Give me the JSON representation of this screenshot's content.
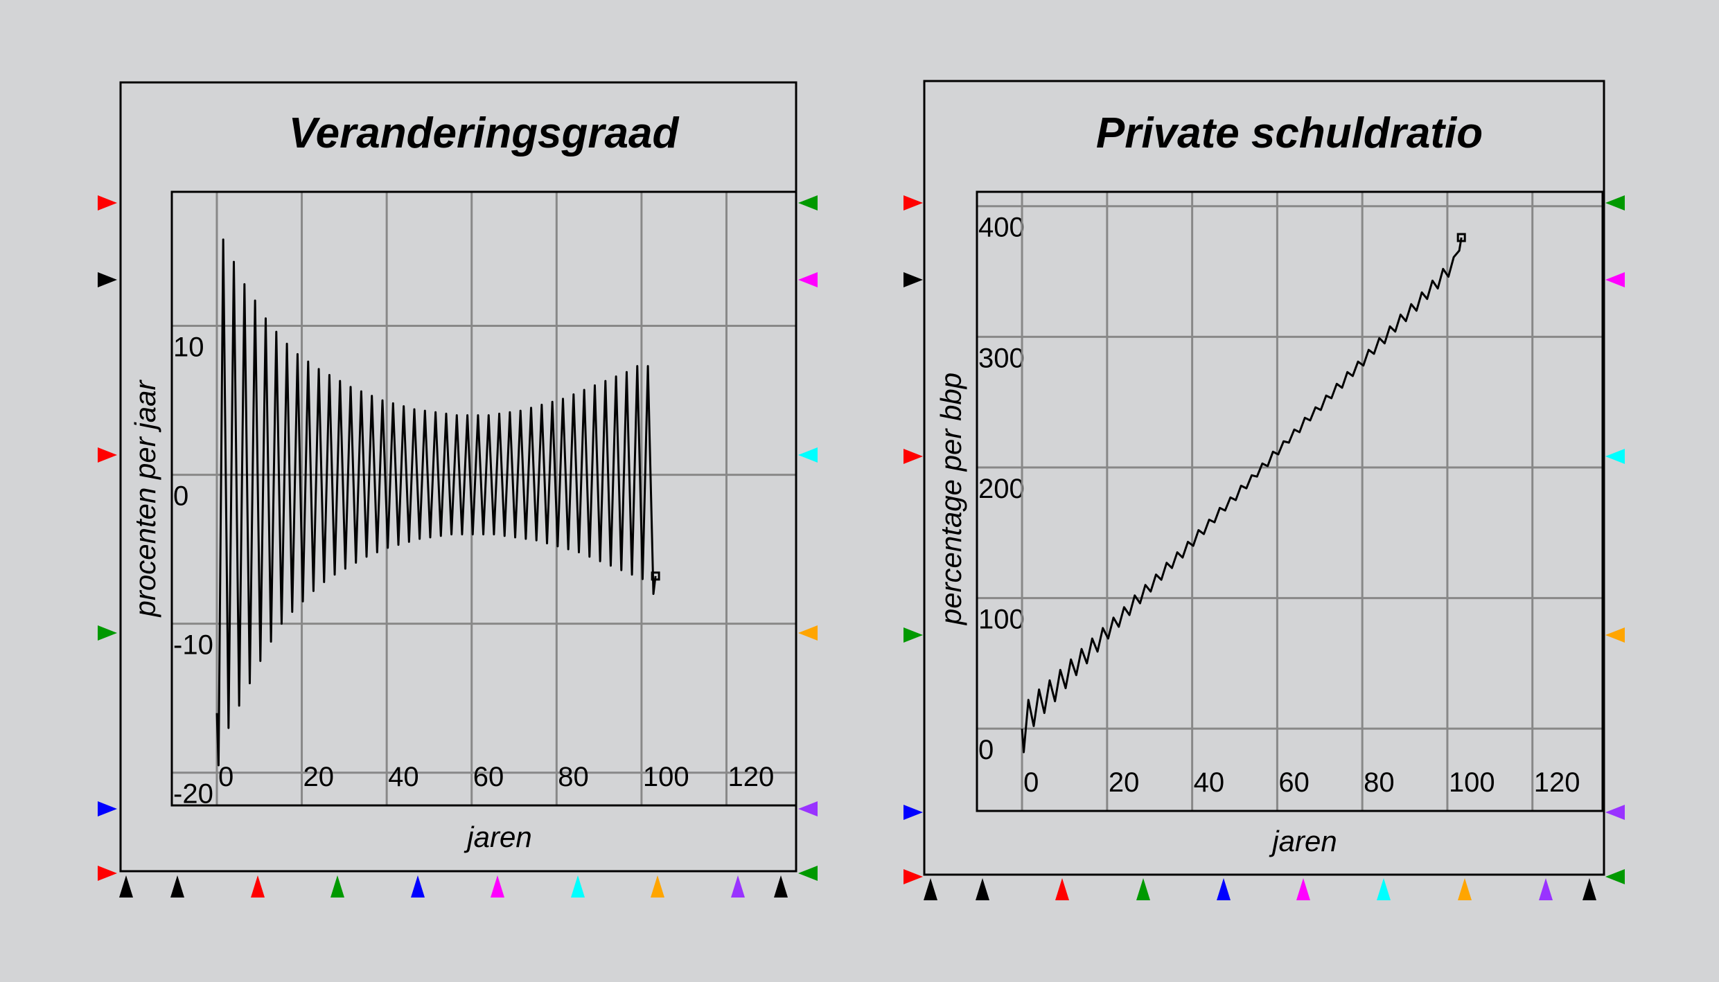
{
  "chart_data": [
    {
      "type": "line",
      "title": "Veranderingsgraad",
      "x_label": "jaren",
      "y_label": "procenten per jaar",
      "color": "#000000",
      "grid": true,
      "end_marker": "square",
      "xlim": [
        -10.6,
        136.4
      ],
      "xticks": [
        0,
        20,
        40,
        60,
        80,
        100,
        120
      ],
      "ylim": [
        -22.2,
        19
      ],
      "yticks": [
        -20,
        -10,
        0,
        10
      ],
      "x": [
        0,
        0.4,
        1.5,
        2.75,
        4,
        5.25,
        6.5,
        7.75,
        9,
        10.25,
        11.5,
        12.75,
        14,
        15.25,
        16.5,
        17.75,
        19,
        20.25,
        21.5,
        22.75,
        24,
        25.25,
        26.5,
        27.75,
        29,
        30.25,
        31.5,
        32.75,
        34,
        35.25,
        36.5,
        37.75,
        39,
        40.25,
        41.5,
        42.75,
        44,
        45.25,
        46.5,
        47.75,
        49,
        50.25,
        51.5,
        52.75,
        54,
        55.25,
        56.5,
        57.75,
        59,
        60.25,
        61.5,
        62.75,
        64,
        65.25,
        66.5,
        67.75,
        69,
        70.25,
        71.5,
        72.75,
        74,
        75.25,
        76.5,
        77.75,
        79,
        80.25,
        81.5,
        82.75,
        84,
        85.25,
        86.5,
        87.75,
        89,
        90.25,
        91.5,
        92.75,
        94,
        95.25,
        96.5,
        97.75,
        99,
        100.25,
        101.5,
        102.8,
        103.3
      ],
      "values": [
        -16,
        -19.5,
        15.8,
        -17,
        14.3,
        -15.5,
        12.8,
        -14,
        11.7,
        -12.5,
        10.5,
        -11.2,
        9.6,
        -10,
        8.8,
        -9.2,
        8.1,
        -8.5,
        7.6,
        -7.8,
        7.1,
        -7.2,
        6.7,
        -6.7,
        6.3,
        -6.3,
        5.9,
        -5.9,
        5.6,
        -5.5,
        5.3,
        -5.2,
        5.0,
        -4.9,
        4.8,
        -4.7,
        4.6,
        -4.5,
        4.4,
        -4.3,
        4.3,
        -4.2,
        4.2,
        -4.1,
        4.1,
        -4.0,
        4.0,
        -4.0,
        4.0,
        -4.0,
        4.0,
        -4.0,
        4.0,
        -4.0,
        4.1,
        -4.1,
        4.2,
        -4.2,
        4.3,
        -4.3,
        4.5,
        -4.4,
        4.7,
        -4.6,
        4.9,
        -4.8,
        5.1,
        -5.0,
        5.4,
        -5.2,
        5.7,
        -5.5,
        6.0,
        -5.8,
        6.3,
        -6.1,
        6.6,
        -6.4,
        6.9,
        -6.7,
        7.3,
        -7.0,
        7.3,
        -8,
        -6.8
      ]
    },
    {
      "type": "line",
      "title": "Private schuldratio",
      "x_label": "jaren",
      "y_label": "percentage per bbp",
      "color": "#000000",
      "grid": true,
      "end_marker": "square",
      "xlim": [
        -10.6,
        136.5
      ],
      "xticks": [
        0,
        20,
        40,
        60,
        80,
        100,
        120
      ],
      "ylim": [
        -63,
        411
      ],
      "yticks": [
        0,
        100,
        200,
        300,
        400
      ],
      "x": [
        0,
        0.4,
        1.5,
        2.75,
        4,
        5.25,
        6.5,
        7.75,
        9,
        10.25,
        11.5,
        12.75,
        14,
        15.25,
        16.5,
        17.75,
        19,
        20.25,
        21.5,
        22.75,
        24,
        25.25,
        26.5,
        27.75,
        29,
        30.25,
        31.5,
        32.75,
        34,
        35.25,
        36.5,
        37.75,
        39,
        40.25,
        41.5,
        42.75,
        44,
        45.25,
        46.5,
        47.75,
        49,
        50.25,
        51.5,
        52.75,
        54,
        55.25,
        56.5,
        57.75,
        59,
        60.25,
        61.5,
        62.75,
        64,
        65.25,
        66.5,
        67.75,
        69,
        70.25,
        71.5,
        72.75,
        74,
        75.25,
        76.5,
        77.75,
        79,
        80.25,
        81.5,
        82.75,
        84,
        85.25,
        86.5,
        87.75,
        89,
        90.25,
        91.5,
        92.75,
        94,
        95.25,
        96.5,
        97.75,
        99,
        100.25,
        101.5,
        102.8,
        103.3
      ],
      "values": [
        0,
        -18,
        22,
        2,
        30,
        12,
        37,
        21,
        45,
        31,
        53,
        41,
        61,
        50,
        69,
        59,
        77,
        69,
        85,
        78,
        93,
        87,
        102,
        96,
        110,
        105,
        118,
        114,
        127,
        123,
        135,
        131,
        143,
        140,
        152,
        149,
        160,
        158,
        169,
        167,
        177,
        175,
        186,
        184,
        194,
        193,
        203,
        201,
        212,
        210,
        220,
        219,
        229,
        227,
        238,
        236,
        246,
        244,
        255,
        253,
        264,
        261,
        273,
        270,
        281,
        278,
        290,
        287,
        299,
        295,
        308,
        304,
        317,
        312,
        325,
        320,
        334,
        329,
        343,
        337,
        352,
        346,
        361,
        366,
        376
      ]
    }
  ]
}
